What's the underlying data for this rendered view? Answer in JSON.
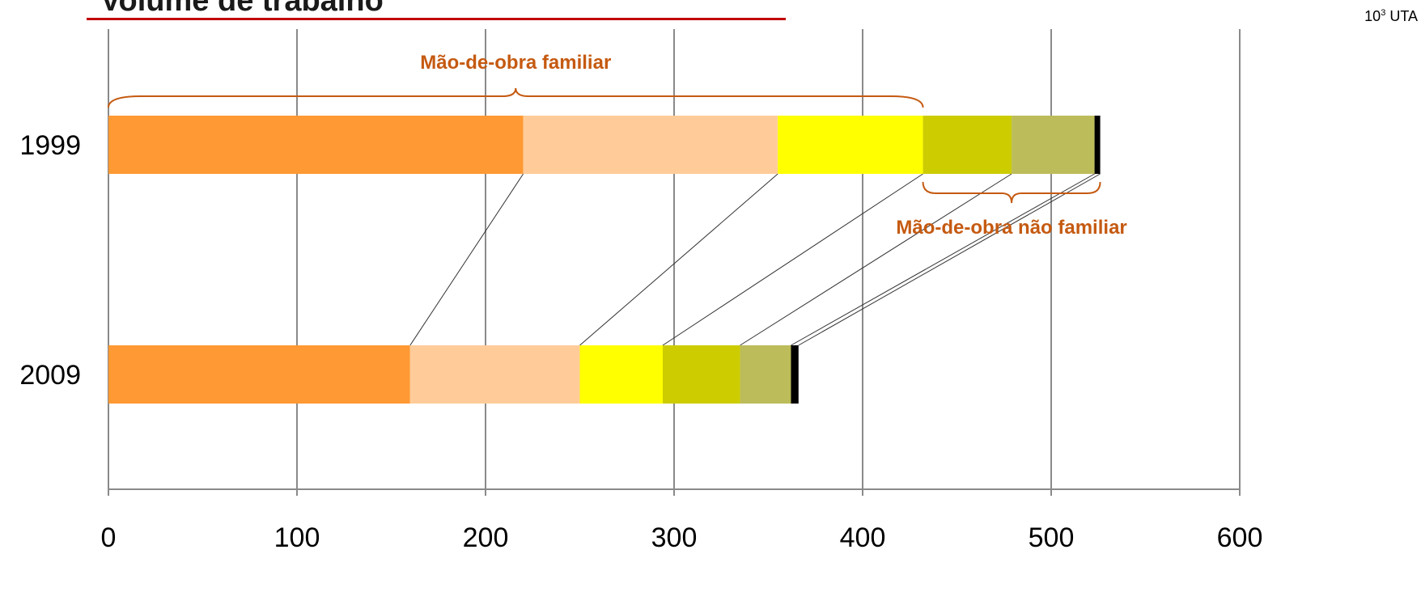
{
  "title": "Volume de trabalho",
  "unit": {
    "base": "10",
    "exp": "3",
    "label": "UTA"
  },
  "chart_data": {
    "type": "bar",
    "orientation": "horizontal",
    "stacked": true,
    "categories": [
      "1999",
      "2009"
    ],
    "xlim": [
      0,
      600
    ],
    "xticks": [
      0,
      100,
      200,
      300,
      400,
      500,
      600
    ],
    "grid": true,
    "connector_lines": true,
    "series": [
      {
        "color": "#ff9933",
        "values": [
          220,
          160
        ]
      },
      {
        "color": "#ffcc99",
        "values": [
          135,
          90
        ]
      },
      {
        "color": "#ffff00",
        "values": [
          77,
          44
        ]
      },
      {
        "color": "#cccc00",
        "values": [
          47,
          41
        ]
      },
      {
        "color": "#bcbc5a",
        "values": [
          44,
          27
        ]
      },
      {
        "color": "#000000",
        "values": [
          3,
          4
        ]
      }
    ],
    "annotations": [
      {
        "text": "Mão-de-obra familiar",
        "category": "1999",
        "from": 0,
        "to": 432,
        "position": "above"
      },
      {
        "text": "Mão-de-obra não familiar",
        "category": "1999",
        "from": 432,
        "to": 526,
        "position": "below"
      }
    ]
  }
}
